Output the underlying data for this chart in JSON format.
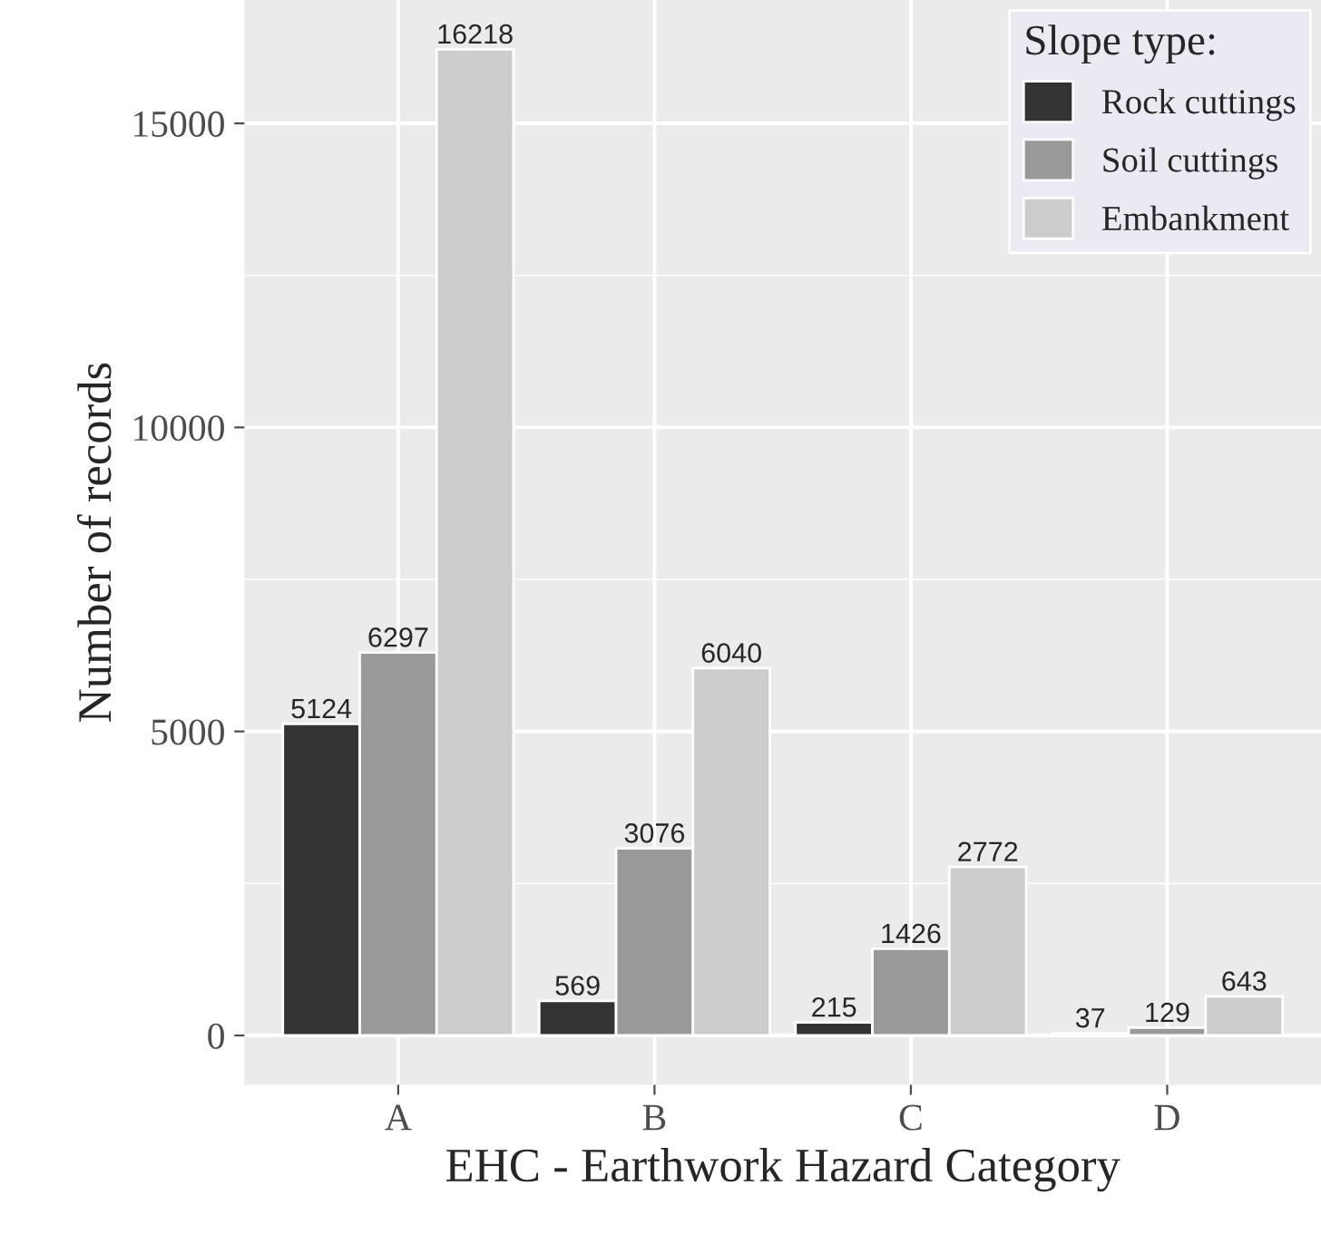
{
  "chart_data": {
    "type": "bar",
    "xlabel": "EHC - Earthwork Hazard Category",
    "ylabel": "Number of records",
    "legend_title": "Slope type:",
    "categories": [
      "A",
      "B",
      "C",
      "D"
    ],
    "series": [
      {
        "name": "Rock cuttings",
        "color": "#333333",
        "values": [
          5124,
          569,
          215,
          37
        ]
      },
      {
        "name": "Soil cuttings",
        "color": "#999999",
        "values": [
          6297,
          3076,
          1426,
          129
        ]
      },
      {
        "name": "Embankment",
        "color": "#cccccc",
        "values": [
          16218,
          6040,
          2772,
          643
        ]
      }
    ],
    "ylim": [
      -811,
      17029
    ],
    "yticks": [
      0,
      5000,
      10000,
      15000
    ],
    "grid": true,
    "legend": "top right",
    "data_labels": true
  }
}
